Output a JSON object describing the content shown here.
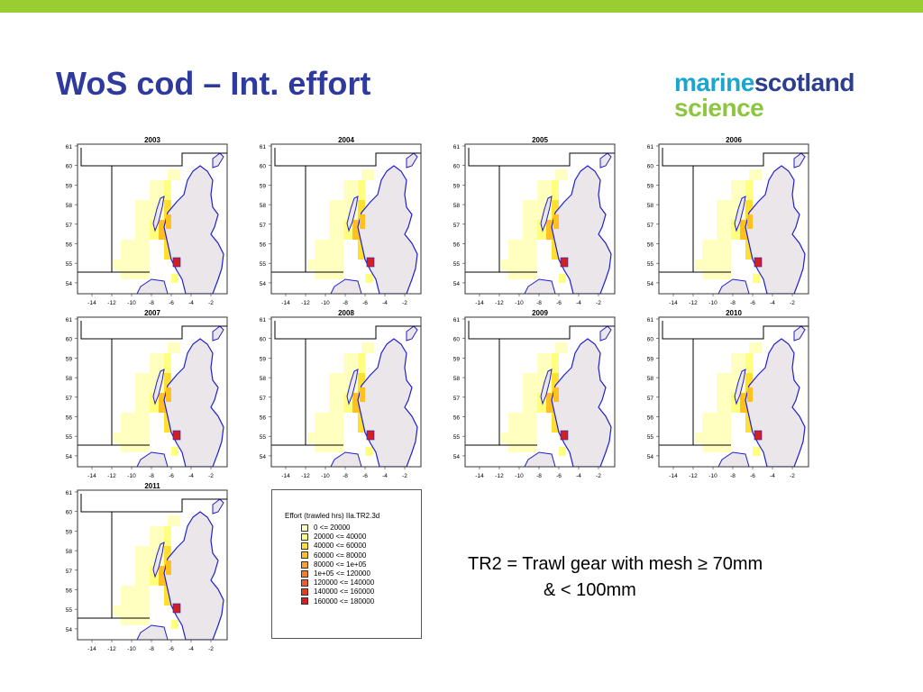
{
  "slide": {
    "title": "WoS cod – Int. effort",
    "logo": {
      "line1a": "marine",
      "line1b": "scotland",
      "line2": "science"
    },
    "accent_bar_color": "#9ACD32",
    "title_color": "#2E3A9E"
  },
  "maps": {
    "years": [
      "2003",
      "2004",
      "2005",
      "2006",
      "2007",
      "2008",
      "2009",
      "2010",
      "2011"
    ],
    "y_ticks": [
      "61",
      "60",
      "59",
      "58",
      "57",
      "56",
      "55",
      "54"
    ],
    "x_ticks": [
      "-14",
      "-12",
      "-10",
      "-8",
      "-6",
      "-4",
      "-2"
    ],
    "land_color": "#EAE6EA",
    "coast_color": "#1F1FD0"
  },
  "legend": {
    "title": "Effort (trawled hrs) IIa.TR2.3d",
    "items": [
      {
        "label": "0 <= 20000",
        "color": "#FFFFC0"
      },
      {
        "label": "20000 <= 40000",
        "color": "#FFFF80"
      },
      {
        "label": "40000 <= 60000",
        "color": "#FFE030"
      },
      {
        "label": "60000 <= 80000",
        "color": "#FFC020"
      },
      {
        "label": "80000 <= 1e+05",
        "color": "#F8A030"
      },
      {
        "label": "1e+05 <= 120000",
        "color": "#F08030"
      },
      {
        "label": "120000 <= 140000",
        "color": "#E86030"
      },
      {
        "label": "140000 <= 160000",
        "color": "#E04020"
      },
      {
        "label": "160000 <= 180000",
        "color": "#D02020"
      }
    ]
  },
  "note": {
    "line1": "TR2 = Trawl gear with mesh ≥ 70mm",
    "line2": "& < 100mm"
  }
}
